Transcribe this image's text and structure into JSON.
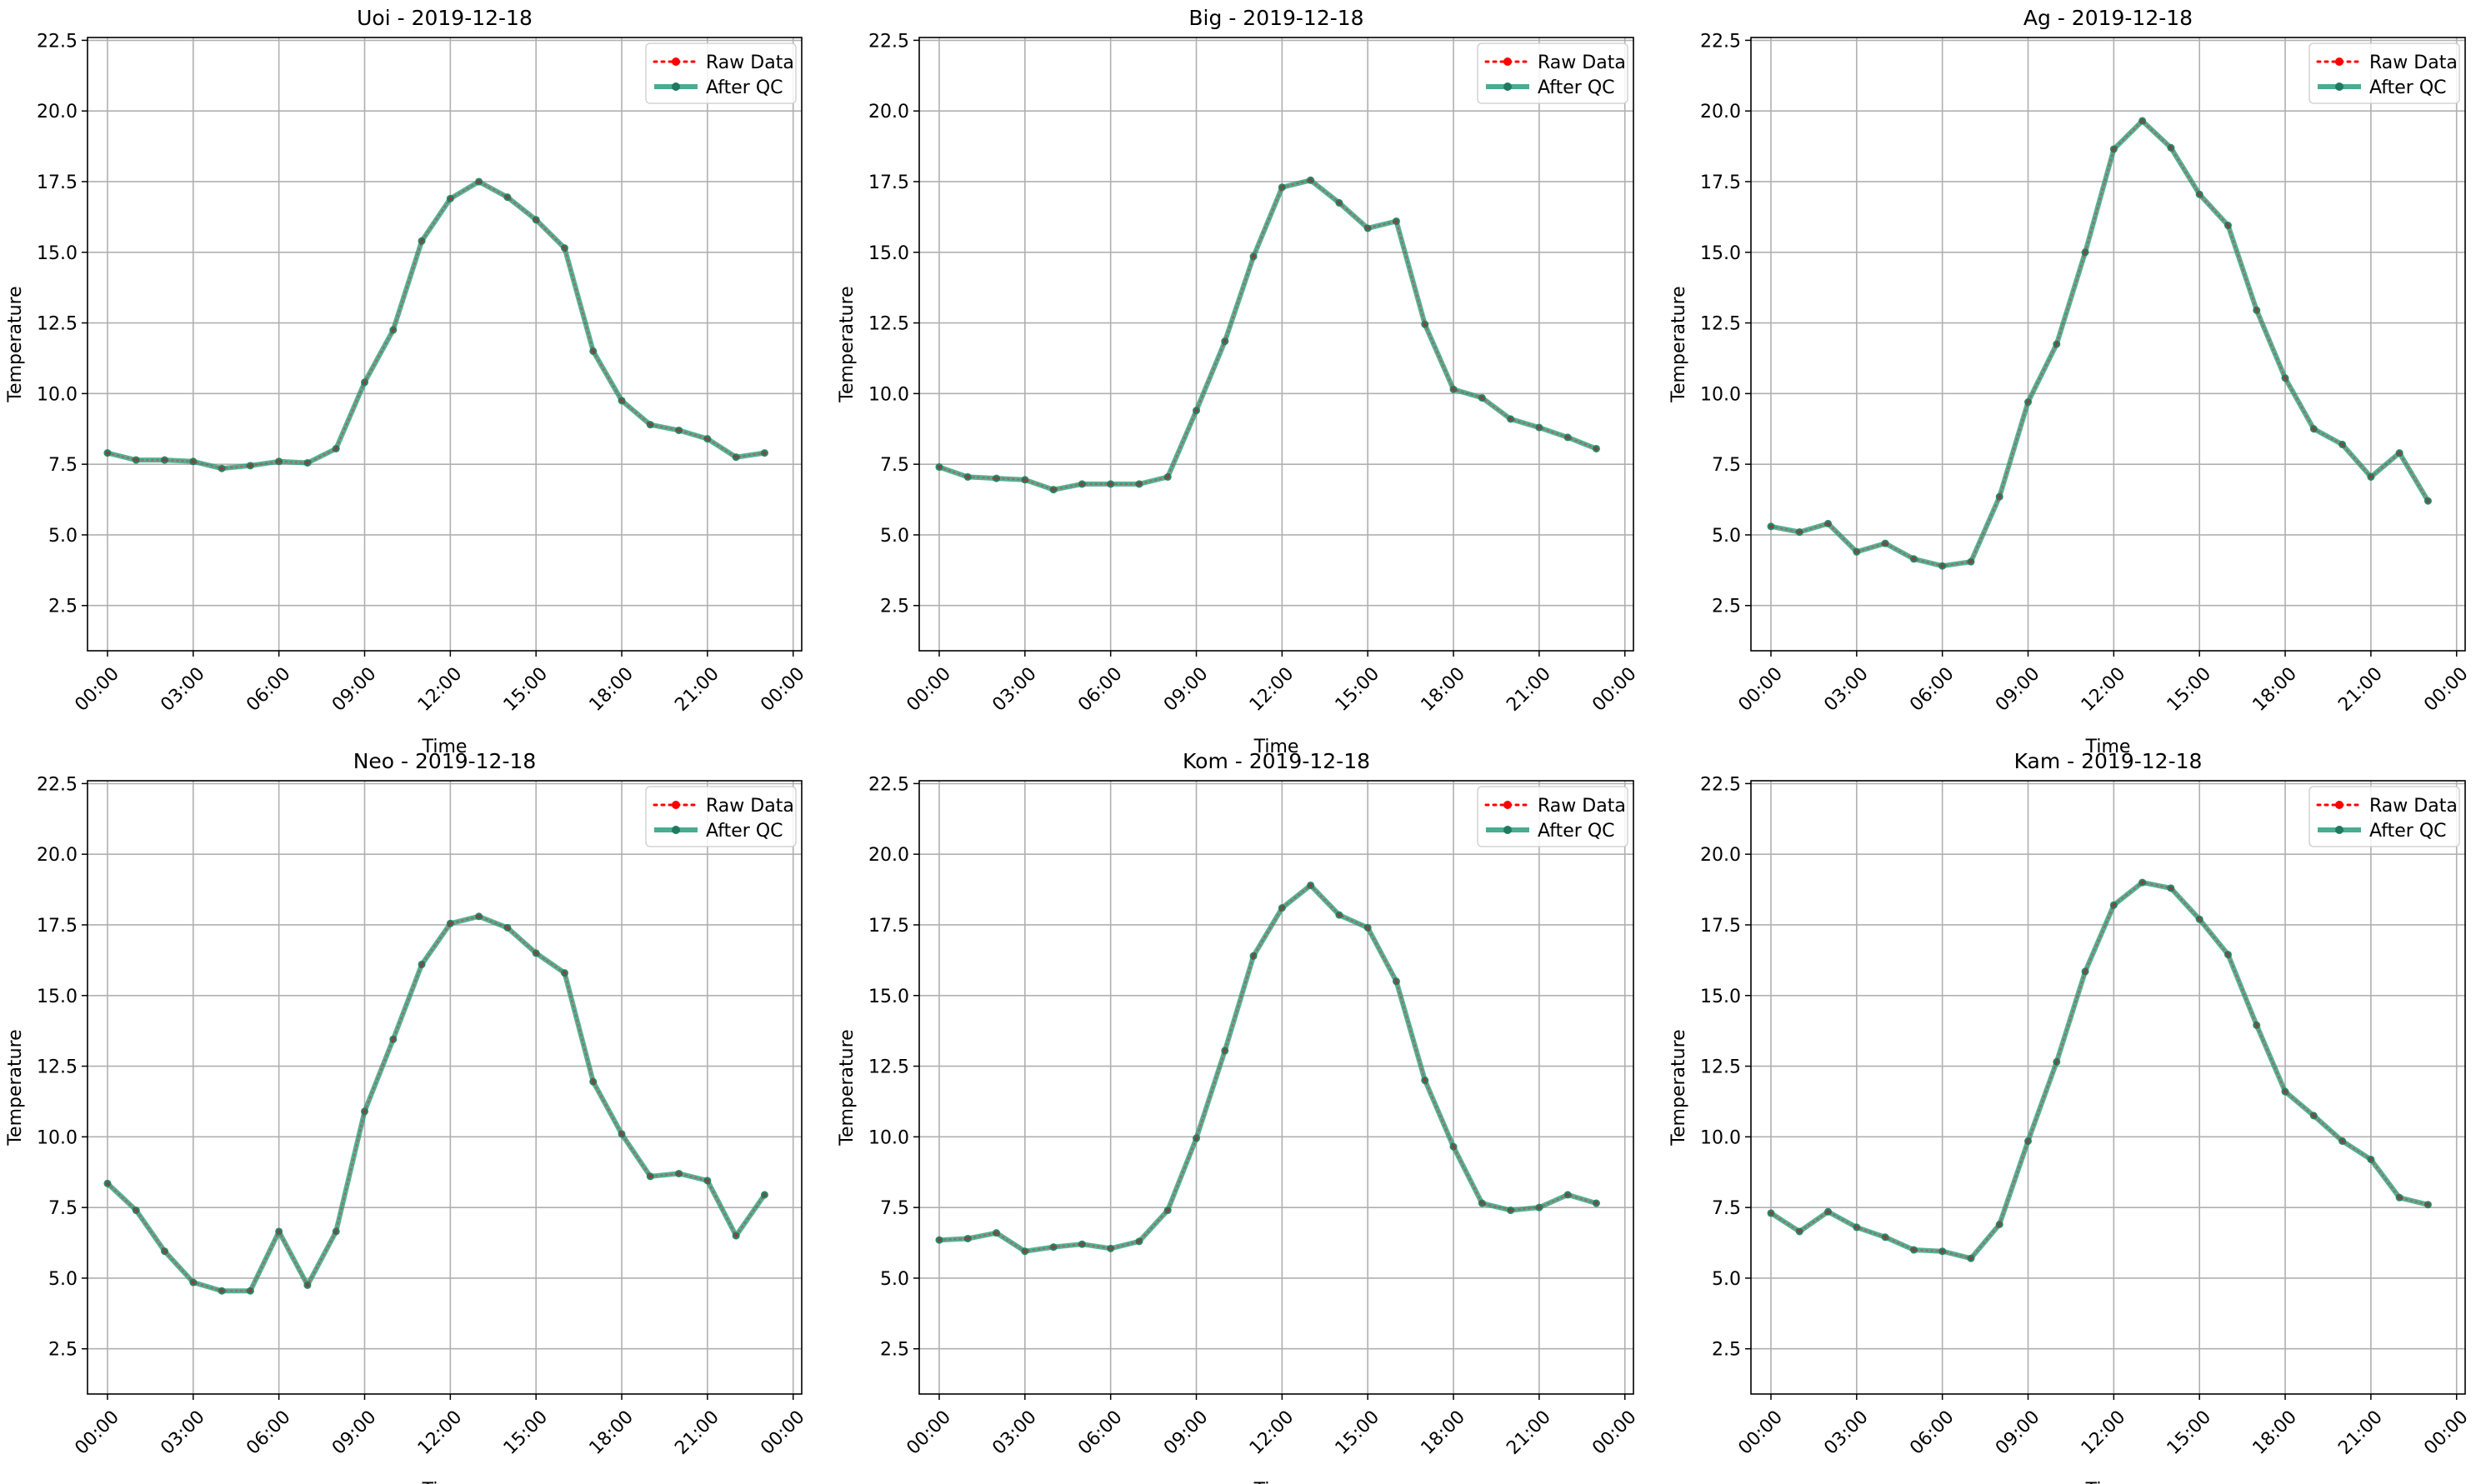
{
  "colors": {
    "raw": "#ff0000",
    "qc": "#2a9d7c",
    "qc_marker": "#1f7a5f",
    "grid": "#b0b0b0",
    "axis": "#000000"
  },
  "chart_data": [
    {
      "type": "line",
      "title": "Uoi - 2019-12-18",
      "xlabel": "Time",
      "ylabel": "Temperature",
      "x": [
        "00:00",
        "01:00",
        "02:00",
        "03:00",
        "04:00",
        "05:00",
        "06:00",
        "07:00",
        "08:00",
        "09:00",
        "10:00",
        "11:00",
        "12:00",
        "13:00",
        "14:00",
        "15:00",
        "16:00",
        "17:00",
        "18:00",
        "19:00",
        "20:00",
        "21:00",
        "22:00",
        "23:00"
      ],
      "xticks": [
        "00:00",
        "03:00",
        "06:00",
        "09:00",
        "12:00",
        "15:00",
        "18:00",
        "21:00",
        "00:00"
      ],
      "ylim": [
        0.9,
        22.6
      ],
      "yticks": [
        "2.5",
        "5.0",
        "7.5",
        "10.0",
        "12.5",
        "15.0",
        "17.5",
        "20.0",
        "22.5"
      ],
      "grid": true,
      "legend_position": "top-right",
      "series": [
        {
          "name": "Raw Data",
          "style": "dotted-red",
          "values": [
            7.9,
            7.65,
            7.65,
            7.6,
            7.35,
            7.45,
            7.6,
            7.55,
            8.05,
            10.4,
            12.25,
            15.4,
            16.9,
            17.5,
            16.95,
            16.15,
            15.15,
            11.5,
            9.75,
            8.9,
            8.7,
            8.4,
            7.75,
            7.9
          ]
        },
        {
          "name": "After QC",
          "style": "solid-green",
          "values": [
            7.9,
            7.65,
            7.65,
            7.6,
            7.35,
            7.45,
            7.6,
            7.55,
            8.05,
            10.4,
            12.25,
            15.4,
            16.9,
            17.5,
            16.95,
            16.15,
            15.15,
            11.5,
            9.75,
            8.9,
            8.7,
            8.4,
            7.75,
            7.9
          ]
        }
      ]
    },
    {
      "type": "line",
      "title": "Big - 2019-12-18",
      "xlabel": "Time",
      "ylabel": "Temperature",
      "x": [
        "00:00",
        "01:00",
        "02:00",
        "03:00",
        "04:00",
        "05:00",
        "06:00",
        "07:00",
        "08:00",
        "09:00",
        "10:00",
        "11:00",
        "12:00",
        "13:00",
        "14:00",
        "15:00",
        "16:00",
        "17:00",
        "18:00",
        "19:00",
        "20:00",
        "21:00",
        "22:00",
        "23:00"
      ],
      "xticks": [
        "00:00",
        "03:00",
        "06:00",
        "09:00",
        "12:00",
        "15:00",
        "18:00",
        "21:00",
        "00:00"
      ],
      "ylim": [
        0.9,
        22.6
      ],
      "yticks": [
        "2.5",
        "5.0",
        "7.5",
        "10.0",
        "12.5",
        "15.0",
        "17.5",
        "20.0",
        "22.5"
      ],
      "grid": true,
      "legend_position": "top-right",
      "series": [
        {
          "name": "Raw Data",
          "style": "dotted-red",
          "values": [
            7.4,
            7.05,
            7.0,
            6.95,
            6.6,
            6.8,
            6.8,
            6.8,
            7.05,
            9.4,
            11.85,
            14.85,
            17.3,
            17.55,
            16.75,
            15.85,
            16.1,
            12.45,
            10.15,
            9.85,
            9.1,
            8.8,
            8.45,
            8.05
          ]
        },
        {
          "name": "After QC",
          "style": "solid-green",
          "values": [
            7.4,
            7.05,
            7.0,
            6.95,
            6.6,
            6.8,
            6.8,
            6.8,
            7.05,
            9.4,
            11.85,
            14.85,
            17.3,
            17.55,
            16.75,
            15.85,
            16.1,
            12.45,
            10.15,
            9.85,
            9.1,
            8.8,
            8.45,
            8.05
          ]
        }
      ]
    },
    {
      "type": "line",
      "title": "Ag - 2019-12-18",
      "xlabel": "Time",
      "ylabel": "Temperature",
      "x": [
        "00:00",
        "01:00",
        "02:00",
        "03:00",
        "04:00",
        "05:00",
        "06:00",
        "07:00",
        "08:00",
        "09:00",
        "10:00",
        "11:00",
        "12:00",
        "13:00",
        "14:00",
        "15:00",
        "16:00",
        "17:00",
        "18:00",
        "19:00",
        "20:00",
        "21:00",
        "22:00",
        "23:00"
      ],
      "xticks": [
        "00:00",
        "03:00",
        "06:00",
        "09:00",
        "12:00",
        "15:00",
        "18:00",
        "21:00",
        "00:00"
      ],
      "ylim": [
        0.9,
        22.6
      ],
      "yticks": [
        "2.5",
        "5.0",
        "7.5",
        "10.0",
        "12.5",
        "15.0",
        "17.5",
        "20.0",
        "22.5"
      ],
      "grid": true,
      "legend_position": "top-right",
      "series": [
        {
          "name": "Raw Data",
          "style": "dotted-red",
          "values": [
            5.3,
            5.1,
            5.4,
            4.4,
            4.7,
            4.15,
            3.9,
            4.05,
            6.35,
            9.7,
            11.75,
            15.0,
            18.65,
            19.65,
            18.7,
            17.05,
            15.95,
            12.95,
            10.55,
            8.75,
            8.2,
            7.05,
            7.9,
            6.2
          ]
        },
        {
          "name": "After QC",
          "style": "solid-green",
          "values": [
            5.3,
            5.1,
            5.4,
            4.4,
            4.7,
            4.15,
            3.9,
            4.05,
            6.35,
            9.7,
            11.75,
            15.0,
            18.65,
            19.65,
            18.7,
            17.05,
            15.95,
            12.95,
            10.55,
            8.75,
            8.2,
            7.05,
            7.9,
            6.2
          ]
        }
      ]
    },
    {
      "type": "line",
      "title": "Neo - 2019-12-18",
      "xlabel": "Time",
      "ylabel": "Temperature",
      "x": [
        "00:00",
        "01:00",
        "02:00",
        "03:00",
        "04:00",
        "05:00",
        "06:00",
        "07:00",
        "08:00",
        "09:00",
        "10:00",
        "11:00",
        "12:00",
        "13:00",
        "14:00",
        "15:00",
        "16:00",
        "17:00",
        "18:00",
        "19:00",
        "20:00",
        "21:00",
        "22:00",
        "23:00"
      ],
      "xticks": [
        "00:00",
        "03:00",
        "06:00",
        "09:00",
        "12:00",
        "15:00",
        "18:00",
        "21:00",
        "00:00"
      ],
      "ylim": [
        0.9,
        22.6
      ],
      "yticks": [
        "2.5",
        "5.0",
        "7.5",
        "10.0",
        "12.5",
        "15.0",
        "17.5",
        "20.0",
        "22.5"
      ],
      "grid": true,
      "legend_position": "top-right",
      "series": [
        {
          "name": "Raw Data",
          "style": "dotted-red",
          "values": [
            8.35,
            7.4,
            5.95,
            4.85,
            4.55,
            4.55,
            6.65,
            4.75,
            6.65,
            10.9,
            13.45,
            16.1,
            17.55,
            17.8,
            17.4,
            16.5,
            15.8,
            11.95,
            10.1,
            8.6,
            8.7,
            8.45,
            6.5,
            7.95
          ]
        },
        {
          "name": "After QC",
          "style": "solid-green",
          "values": [
            8.35,
            7.4,
            5.95,
            4.85,
            4.55,
            4.55,
            6.65,
            4.75,
            6.65,
            10.9,
            13.45,
            16.1,
            17.55,
            17.8,
            17.4,
            16.5,
            15.8,
            11.95,
            10.1,
            8.6,
            8.7,
            8.45,
            6.5,
            7.95
          ]
        }
      ]
    },
    {
      "type": "line",
      "title": "Kom - 2019-12-18",
      "xlabel": "Time",
      "ylabel": "Temperature",
      "x": [
        "00:00",
        "01:00",
        "02:00",
        "03:00",
        "04:00",
        "05:00",
        "06:00",
        "07:00",
        "08:00",
        "09:00",
        "10:00",
        "11:00",
        "12:00",
        "13:00",
        "14:00",
        "15:00",
        "16:00",
        "17:00",
        "18:00",
        "19:00",
        "20:00",
        "21:00",
        "22:00",
        "23:00"
      ],
      "xticks": [
        "00:00",
        "03:00",
        "06:00",
        "09:00",
        "12:00",
        "15:00",
        "18:00",
        "21:00",
        "00:00"
      ],
      "ylim": [
        0.9,
        22.6
      ],
      "yticks": [
        "2.5",
        "5.0",
        "7.5",
        "10.0",
        "12.5",
        "15.0",
        "17.5",
        "20.0",
        "22.5"
      ],
      "grid": true,
      "legend_position": "top-right",
      "series": [
        {
          "name": "Raw Data",
          "style": "dotted-red",
          "values": [
            6.35,
            6.4,
            6.6,
            5.95,
            6.1,
            6.2,
            6.05,
            6.3,
            7.4,
            9.95,
            13.05,
            16.4,
            18.1,
            18.9,
            17.85,
            17.4,
            15.5,
            12.0,
            9.65,
            7.65,
            7.4,
            7.5,
            7.95,
            7.65
          ]
        },
        {
          "name": "After QC",
          "style": "solid-green",
          "values": [
            6.35,
            6.4,
            6.6,
            5.95,
            6.1,
            6.2,
            6.05,
            6.3,
            7.4,
            9.95,
            13.05,
            16.4,
            18.1,
            18.9,
            17.85,
            17.4,
            15.5,
            12.0,
            9.65,
            7.65,
            7.4,
            7.5,
            7.95,
            7.65
          ]
        }
      ]
    },
    {
      "type": "line",
      "title": "Kam - 2019-12-18",
      "xlabel": "Time",
      "ylabel": "Temperature",
      "x": [
        "00:00",
        "01:00",
        "02:00",
        "03:00",
        "04:00",
        "05:00",
        "06:00",
        "07:00",
        "08:00",
        "09:00",
        "10:00",
        "11:00",
        "12:00",
        "13:00",
        "14:00",
        "15:00",
        "16:00",
        "17:00",
        "18:00",
        "19:00",
        "20:00",
        "21:00",
        "22:00",
        "23:00"
      ],
      "xticks": [
        "00:00",
        "03:00",
        "06:00",
        "09:00",
        "12:00",
        "15:00",
        "18:00",
        "21:00",
        "00:00"
      ],
      "ylim": [
        0.9,
        22.6
      ],
      "yticks": [
        "2.5",
        "5.0",
        "7.5",
        "10.0",
        "12.5",
        "15.0",
        "17.5",
        "20.0",
        "22.5"
      ],
      "grid": true,
      "legend_position": "top-right",
      "series": [
        {
          "name": "Raw Data",
          "style": "dotted-red",
          "values": [
            7.3,
            6.65,
            7.35,
            6.8,
            6.45,
            6.0,
            5.95,
            5.7,
            6.9,
            9.85,
            12.65,
            15.85,
            18.2,
            19.0,
            18.8,
            17.7,
            16.45,
            13.95,
            11.6,
            10.75,
            9.85,
            9.2,
            7.85,
            7.6
          ]
        },
        {
          "name": "After QC",
          "style": "solid-green",
          "values": [
            7.3,
            6.65,
            7.35,
            6.8,
            6.45,
            6.0,
            5.95,
            5.7,
            6.9,
            9.85,
            12.65,
            15.85,
            18.2,
            19.0,
            18.8,
            17.7,
            16.45,
            13.95,
            11.6,
            10.75,
            9.85,
            9.2,
            7.85,
            7.6
          ]
        }
      ]
    }
  ]
}
